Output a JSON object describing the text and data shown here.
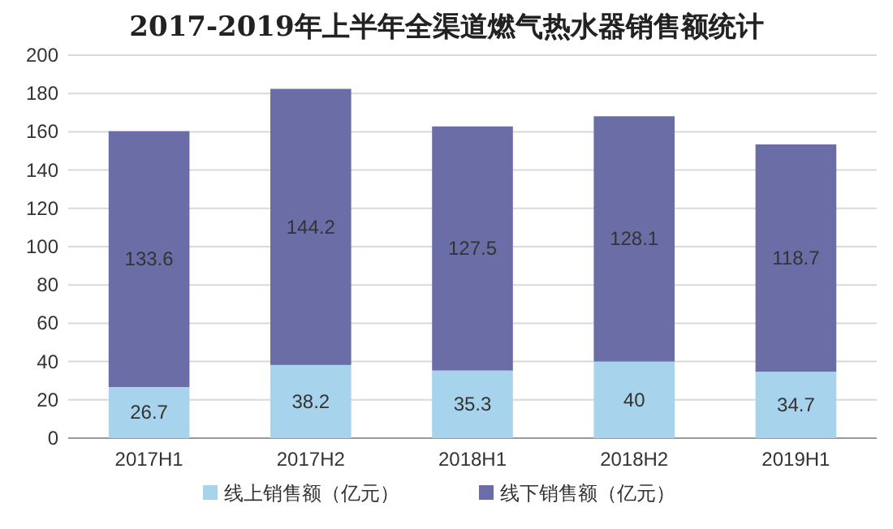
{
  "chart_data": {
    "type": "bar",
    "stacked": true,
    "title": "2017-2019年上半年全渠道燃气热水器销售额统计",
    "categories": [
      "2017H1",
      "2017H2",
      "2018H1",
      "2018H2",
      "2019H1"
    ],
    "series": [
      {
        "name": "线上销售额（亿元）",
        "color": "#a8d3ec",
        "values": [
          26.7,
          38.2,
          35.3,
          40,
          34.7
        ]
      },
      {
        "name": "线下销售额（亿元）",
        "color": "#6b6ea6",
        "values": [
          133.6,
          144.2,
          127.5,
          128.1,
          118.7
        ]
      }
    ],
    "ylim": [
      0,
      200
    ],
    "yticks": [
      0,
      20,
      40,
      60,
      80,
      100,
      120,
      140,
      160,
      180,
      200
    ],
    "grid": "y",
    "legend": "bottom",
    "data_labels": true
  }
}
